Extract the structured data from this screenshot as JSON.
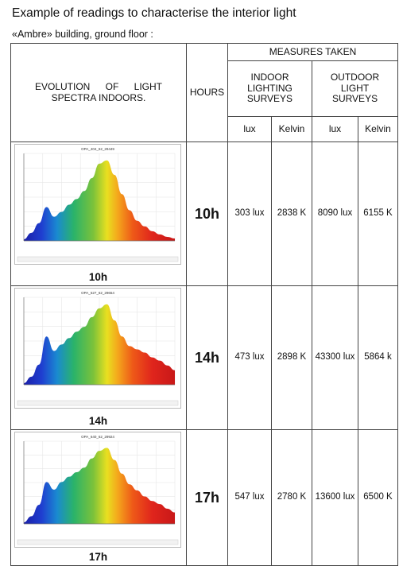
{
  "header": {
    "title": "Example of readings to characterise the interior light",
    "subtitle": "«Ambre» building, ground floor :"
  },
  "table": {
    "col_evolution": "EVOLUTION OF LIGHT SPECTRA INDOORS.",
    "col_hours": "HOURS",
    "group_measures": "MEASURES TAKEN",
    "group_indoor": "INDOOR LIGHTING SURVEYS",
    "group_outdoor": "OUTDOOR LIGHT SURVEYS",
    "sub_headers": [
      "lux",
      "Kelvin",
      "lux",
      "Kelvin"
    ],
    "rows": [
      {
        "spectrum_label": "10h",
        "chart_title": "OPA_404_62_29449",
        "hour": "10h",
        "indoor_lux": "303 lux",
        "indoor_kelvin": "2838 K",
        "outdoor_lux": "8090 lux",
        "outdoor_kelvin": "6155 K"
      },
      {
        "spectrum_label": "14h",
        "chart_title": "OPA_527_62_29654",
        "hour": "14h",
        "indoor_lux": "473 lux",
        "indoor_kelvin": "2898 K",
        "outdoor_lux": "43300 lux",
        "outdoor_kelvin": "5864 k"
      },
      {
        "spectrum_label": "17h",
        "chart_title": "OPA_640_62_29924",
        "hour": "17h",
        "indoor_lux": "547 lux",
        "indoor_kelvin": "2780 K",
        "outdoor_lux": "13600 lux",
        "outdoor_kelvin": "6500 K"
      }
    ]
  },
  "chart_data": [
    {
      "type": "area",
      "title": "OPA_404_62_29449",
      "x": [
        380,
        400,
        420,
        440,
        460,
        480,
        500,
        520,
        540,
        560,
        580,
        600,
        620,
        640,
        660,
        680,
        700,
        720,
        740,
        760,
        780
      ],
      "values": [
        0.02,
        0.1,
        0.22,
        0.42,
        0.3,
        0.36,
        0.45,
        0.52,
        0.62,
        0.78,
        0.96,
        1.0,
        0.82,
        0.58,
        0.38,
        0.25,
        0.18,
        0.12,
        0.08,
        0.05,
        0.03
      ]
    },
    {
      "type": "area",
      "title": "OPA_527_62_29654",
      "x": [
        380,
        400,
        420,
        440,
        460,
        480,
        500,
        520,
        540,
        560,
        580,
        600,
        620,
        640,
        660,
        680,
        700,
        720,
        740,
        760,
        780
      ],
      "values": [
        0.02,
        0.1,
        0.25,
        0.6,
        0.42,
        0.5,
        0.58,
        0.66,
        0.72,
        0.84,
        0.95,
        1.0,
        0.8,
        0.6,
        0.48,
        0.44,
        0.4,
        0.34,
        0.3,
        0.24,
        0.18
      ]
    },
    {
      "type": "area",
      "title": "OPA_640_62_29924",
      "x": [
        380,
        400,
        420,
        440,
        460,
        480,
        500,
        520,
        540,
        560,
        580,
        600,
        620,
        640,
        660,
        680,
        700,
        720,
        740,
        760,
        780
      ],
      "values": [
        0.02,
        0.1,
        0.25,
        0.55,
        0.45,
        0.55,
        0.62,
        0.68,
        0.74,
        0.86,
        0.96,
        1.0,
        0.84,
        0.66,
        0.52,
        0.44,
        0.36,
        0.3,
        0.26,
        0.2,
        0.15
      ]
    }
  ]
}
